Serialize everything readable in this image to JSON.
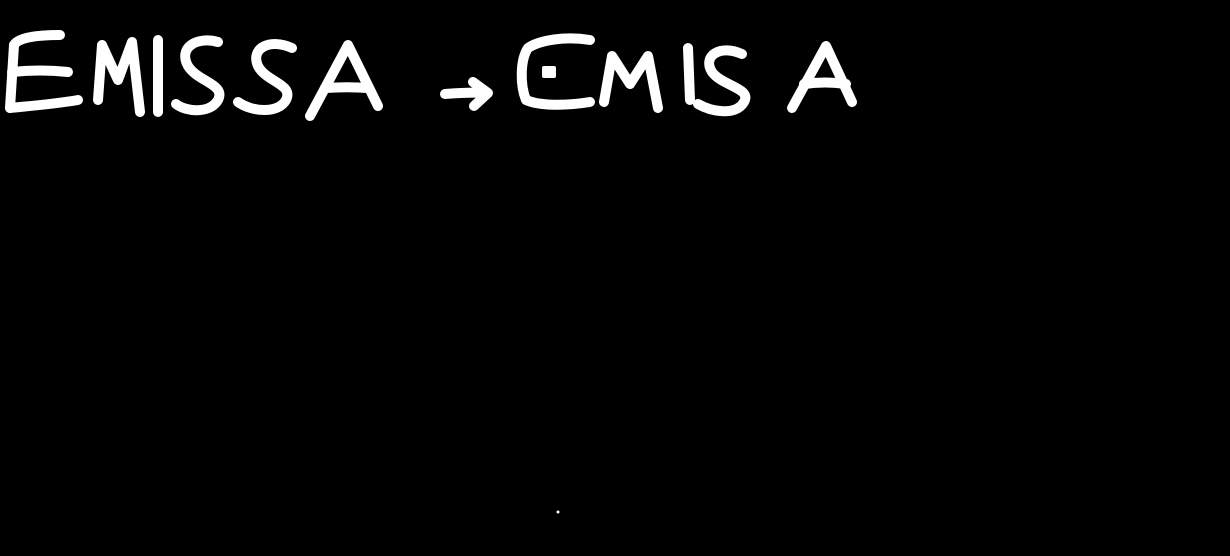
{
  "note": {
    "from_word": "EMISSA",
    "arrow": "→",
    "to_word": "EMISA"
  },
  "colors": {
    "background": "#000000",
    "ink": "#ffffff"
  }
}
